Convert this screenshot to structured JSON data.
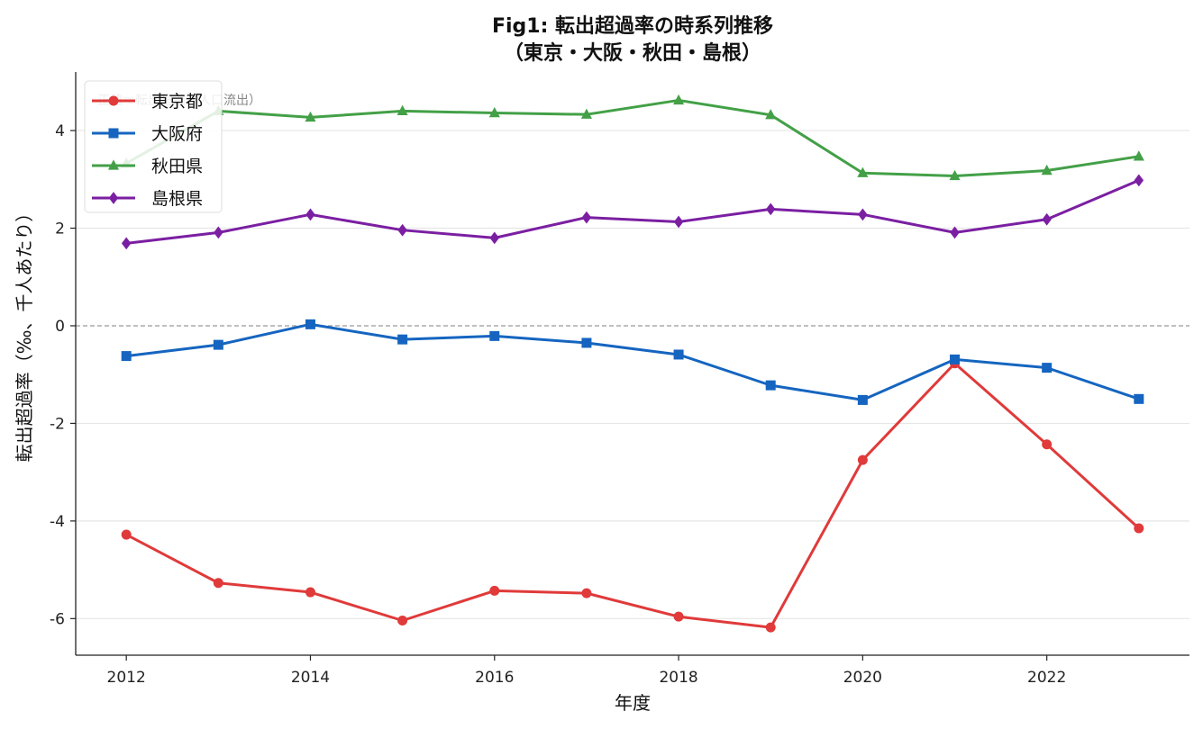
{
  "chart_data": {
    "type": "line",
    "title": "Fig1: 転出超過率の時系列推移",
    "subtitle": "（東京・大阪・秋田・島根）",
    "xlabel": "年度",
    "ylabel": "転出超過率（‰、千人あたり）",
    "annotation": "正値＝転出超過（人口流出）",
    "xlim": [
      2011.45,
      2023.55
    ],
    "ylim": [
      -6.75,
      5.2
    ],
    "x_ticks": [
      2012,
      2014,
      2016,
      2018,
      2020,
      2022
    ],
    "y_ticks": [
      -6,
      -4,
      -2,
      0,
      2,
      4
    ],
    "grid": "horizontal",
    "zero_line": true,
    "legend_position": "upper-left",
    "x": [
      2012,
      2013,
      2014,
      2015,
      2016,
      2017,
      2018,
      2019,
      2020,
      2021,
      2022,
      2023
    ],
    "series": [
      {
        "name": "東京都",
        "color": "#e03a3a",
        "marker": "circle",
        "values": [
          -4.28,
          -5.27,
          -5.46,
          -6.04,
          -5.43,
          -5.48,
          -5.96,
          -6.18,
          -2.75,
          -0.77,
          -2.43,
          -4.15
        ]
      },
      {
        "name": "大阪府",
        "color": "#1565c0",
        "marker": "square",
        "values": [
          -0.62,
          -0.39,
          0.03,
          -0.28,
          -0.21,
          -0.35,
          -0.59,
          -1.22,
          -1.52,
          -0.69,
          -0.86,
          -1.5
        ]
      },
      {
        "name": "秋田県",
        "color": "#43a047",
        "marker": "triangle",
        "values": [
          3.33,
          4.4,
          4.27,
          4.4,
          4.36,
          4.33,
          4.62,
          4.32,
          3.13,
          3.07,
          3.18,
          3.47
        ]
      },
      {
        "name": "島根県",
        "color": "#7b1fa2",
        "marker": "diamond",
        "values": [
          1.69,
          1.91,
          2.28,
          1.96,
          1.8,
          2.22,
          2.13,
          2.39,
          2.28,
          1.91,
          2.18,
          2.98
        ]
      }
    ]
  }
}
